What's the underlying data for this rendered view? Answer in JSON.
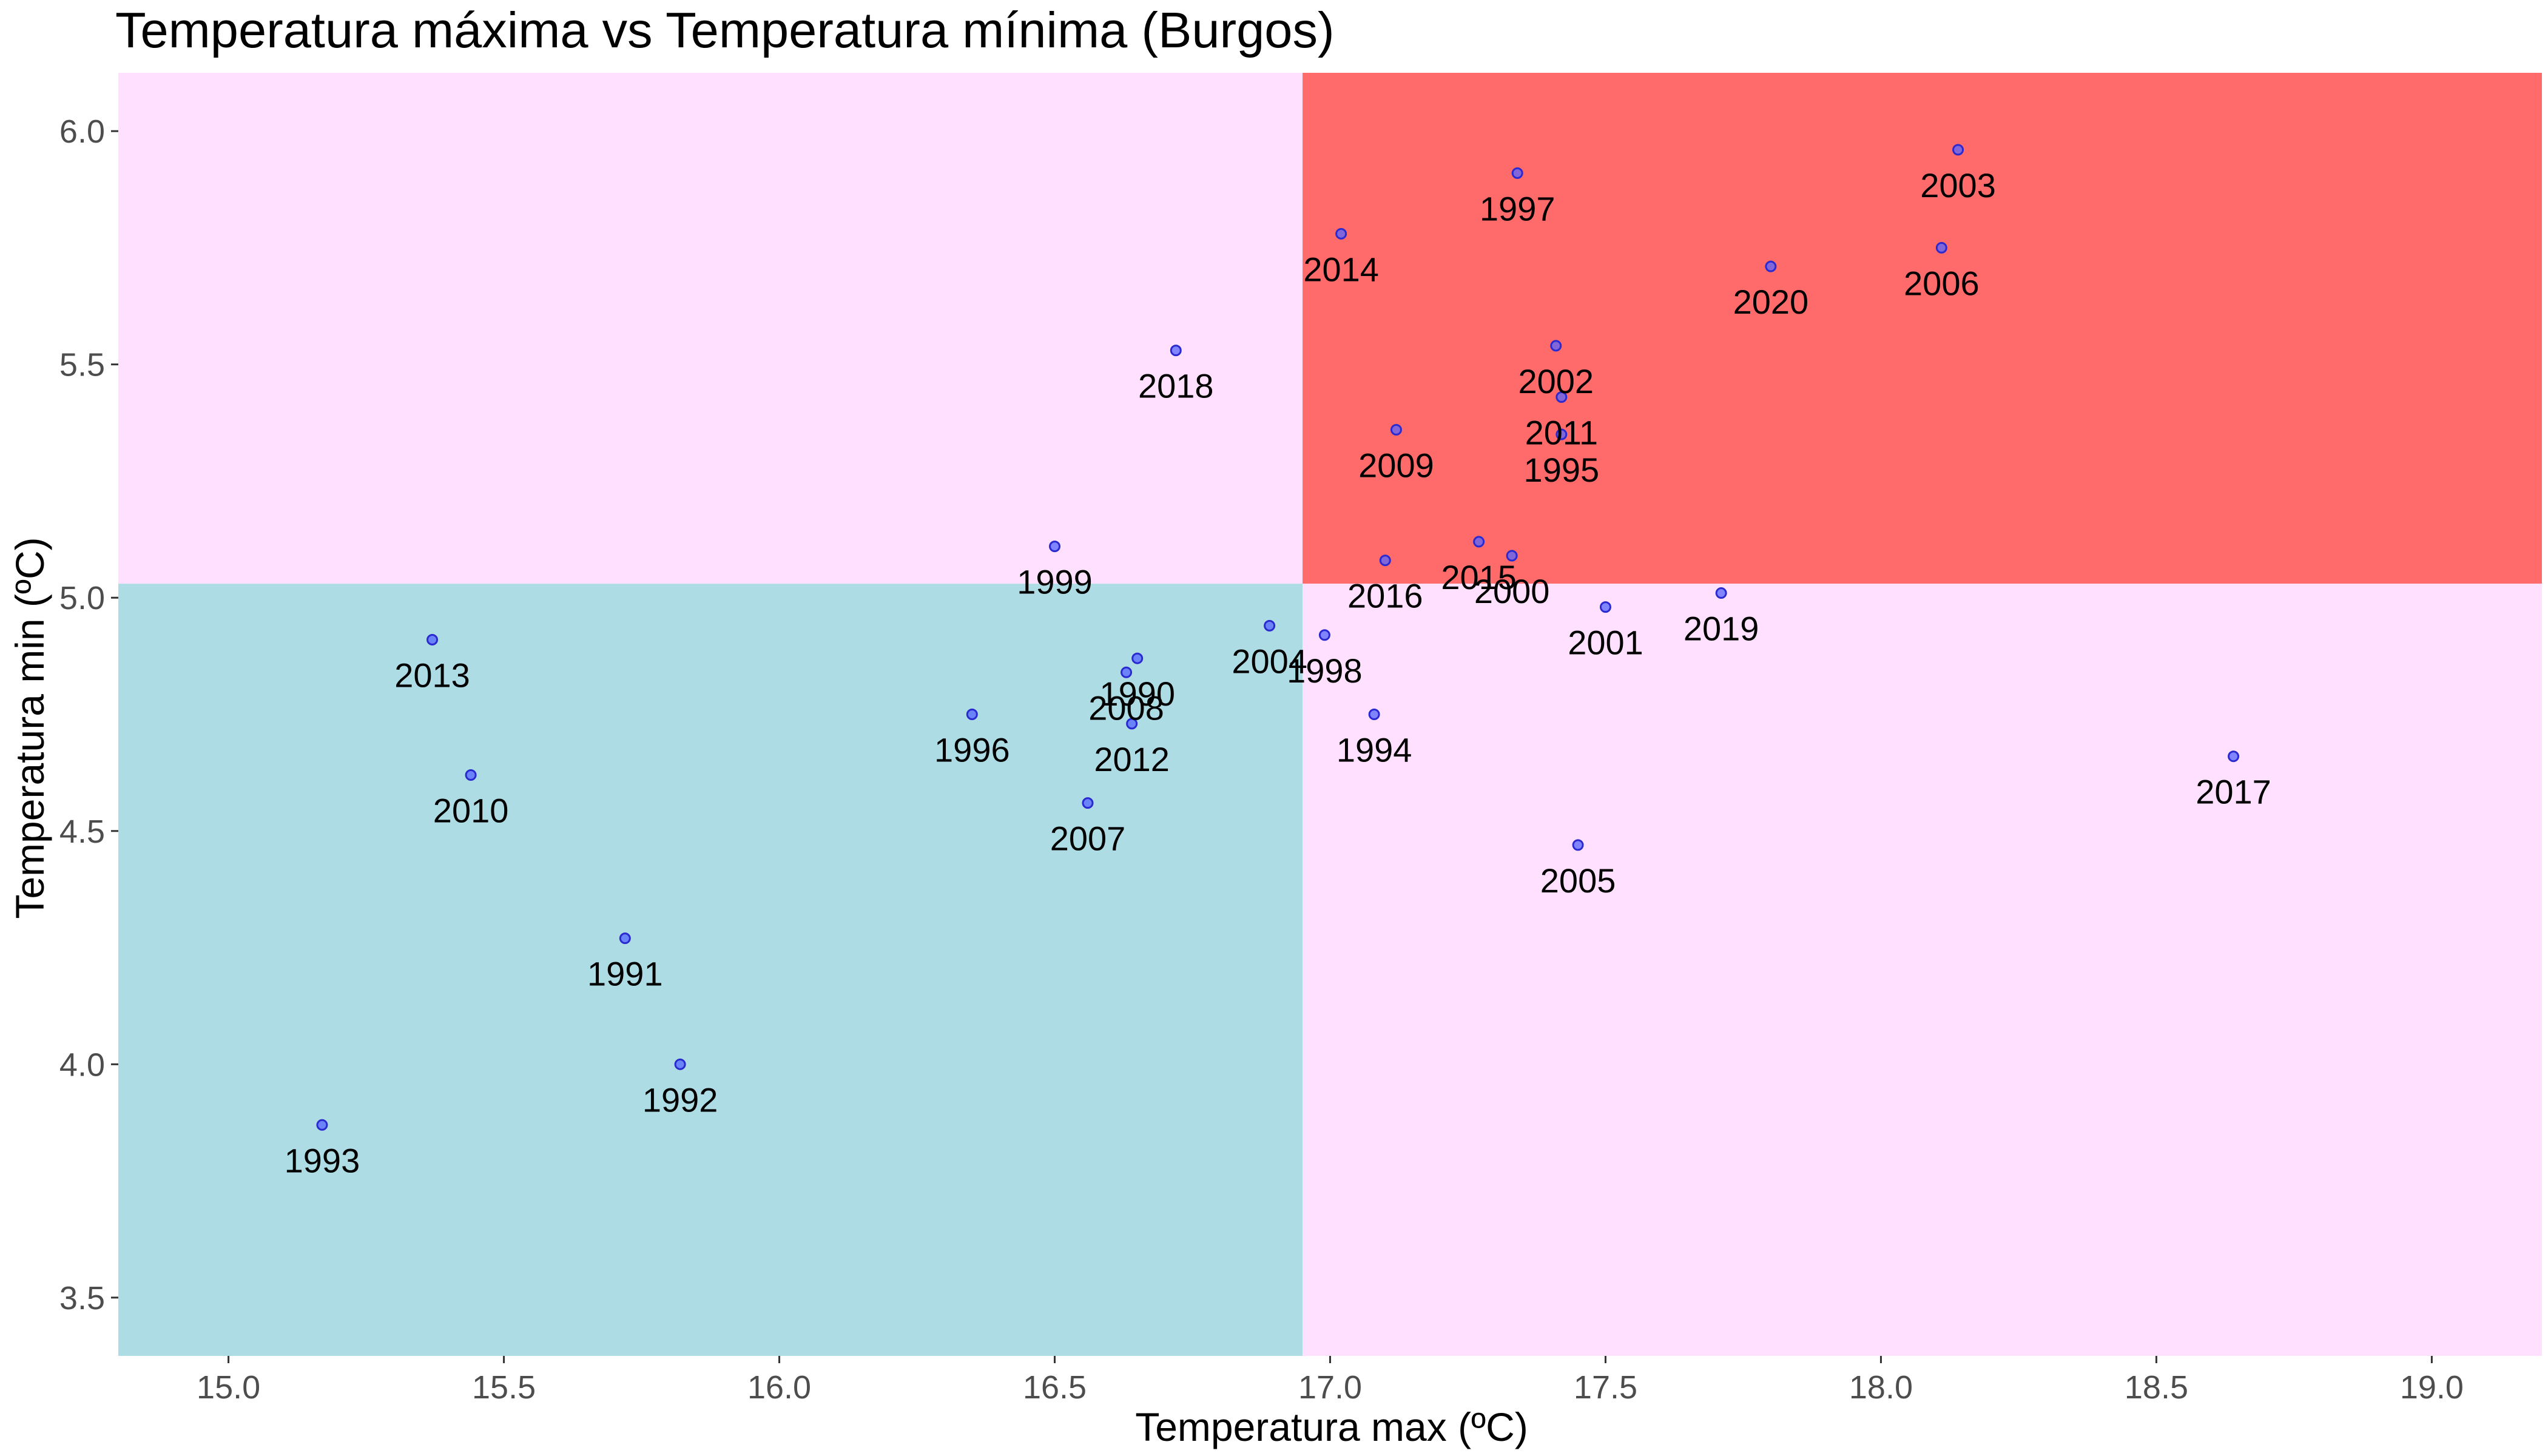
{
  "chart_data": {
    "type": "scatter",
    "title": "Temperatura máxima vs Temperatura mínima (Burgos)",
    "xlabel": "Temperatura max (ºC)",
    "ylabel": "Temperatura min (ºC)",
    "xlim": [
      14.8,
      19.2
    ],
    "ylim": [
      3.375,
      6.125
    ],
    "x_ticks": [
      15.0,
      15.5,
      16.0,
      16.5,
      17.0,
      17.5,
      18.0,
      18.5,
      19.0
    ],
    "x_tick_labels": [
      "15.0",
      "15.5",
      "16.0",
      "16.5",
      "17.0",
      "17.5",
      "18.0",
      "18.5",
      "19.0"
    ],
    "y_ticks": [
      3.5,
      4.0,
      4.5,
      5.0,
      5.5,
      6.0
    ],
    "y_tick_labels": [
      "3.5",
      "4.0",
      "4.5",
      "5.0",
      "5.5",
      "6.0"
    ],
    "grid": false,
    "legend": "none",
    "quadrant_split": {
      "x": 16.95,
      "y": 5.03
    },
    "colors": {
      "quadrant_high_high": "#ff6a6a",
      "quadrant_low_low": "#addce5",
      "quadrant_other": "#ffe1ff",
      "point_fill": "#5566ff",
      "point_stroke": "#2a2ad0"
    },
    "points": [
      {
        "label": "1990",
        "x": 16.65,
        "y": 4.87
      },
      {
        "label": "1991",
        "x": 15.72,
        "y": 4.27
      },
      {
        "label": "1992",
        "x": 15.82,
        "y": 4.0
      },
      {
        "label": "1993",
        "x": 15.17,
        "y": 3.87
      },
      {
        "label": "1994",
        "x": 17.08,
        "y": 4.75
      },
      {
        "label": "1995",
        "x": 17.42,
        "y": 5.35
      },
      {
        "label": "1996",
        "x": 16.35,
        "y": 4.75
      },
      {
        "label": "1997",
        "x": 17.34,
        "y": 5.91
      },
      {
        "label": "1998",
        "x": 16.99,
        "y": 4.92
      },
      {
        "label": "1999",
        "x": 16.5,
        "y": 5.11
      },
      {
        "label": "2000",
        "x": 17.33,
        "y": 5.09
      },
      {
        "label": "2001",
        "x": 17.5,
        "y": 4.98
      },
      {
        "label": "2002",
        "x": 17.41,
        "y": 5.54
      },
      {
        "label": "2003",
        "x": 18.14,
        "y": 5.96
      },
      {
        "label": "2004",
        "x": 16.89,
        "y": 4.94
      },
      {
        "label": "2005",
        "x": 17.45,
        "y": 4.47
      },
      {
        "label": "2006",
        "x": 18.11,
        "y": 5.75
      },
      {
        "label": "2007",
        "x": 16.56,
        "y": 4.56
      },
      {
        "label": "2008",
        "x": 16.63,
        "y": 4.84
      },
      {
        "label": "2009",
        "x": 17.12,
        "y": 5.36
      },
      {
        "label": "2010",
        "x": 15.44,
        "y": 4.62
      },
      {
        "label": "2011",
        "x": 17.42,
        "y": 5.43
      },
      {
        "label": "2012",
        "x": 16.64,
        "y": 4.73
      },
      {
        "label": "2013",
        "x": 15.37,
        "y": 4.91
      },
      {
        "label": "2014",
        "x": 17.02,
        "y": 5.78
      },
      {
        "label": "2015",
        "x": 17.27,
        "y": 5.12
      },
      {
        "label": "2016",
        "x": 17.1,
        "y": 5.08
      },
      {
        "label": "2017",
        "x": 18.64,
        "y": 4.66
      },
      {
        "label": "2018",
        "x": 16.72,
        "y": 5.53
      },
      {
        "label": "2019",
        "x": 17.71,
        "y": 5.01
      },
      {
        "label": "2020",
        "x": 17.8,
        "y": 5.71
      }
    ]
  }
}
